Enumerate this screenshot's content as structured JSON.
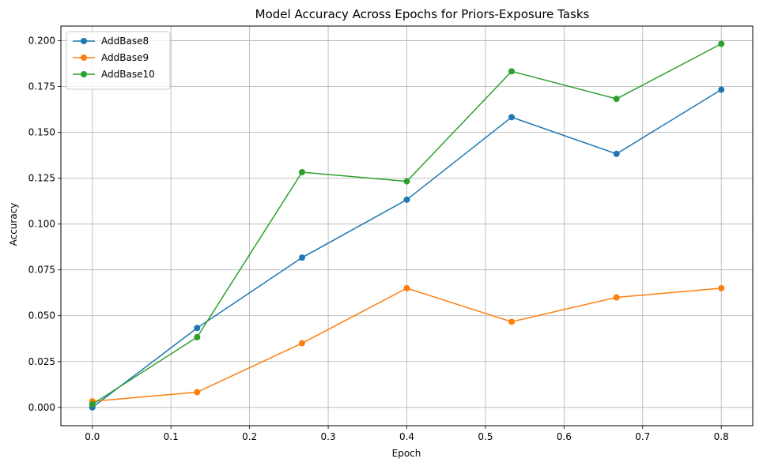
{
  "chart_data": {
    "type": "line",
    "title": "Model Accuracy Across Epochs for Priors-Exposure Tasks",
    "xlabel": "Epoch",
    "ylabel": "Accuracy",
    "x": [
      0.0,
      0.1333,
      0.2667,
      0.4,
      0.5333,
      0.6667,
      0.8
    ],
    "xlim": [
      -0.04,
      0.84
    ],
    "ylim": [
      -0.01,
      0.208
    ],
    "xticks": [
      0.0,
      0.1,
      0.2,
      0.3,
      0.4,
      0.5,
      0.6,
      0.7,
      0.8
    ],
    "xtick_labels": [
      "0.0",
      "0.1",
      "0.2",
      "0.3",
      "0.4",
      "0.5",
      "0.6",
      "0.7",
      "0.8"
    ],
    "yticks": [
      0.0,
      0.025,
      0.05,
      0.075,
      0.1,
      0.125,
      0.15,
      0.175,
      0.2
    ],
    "ytick_labels": [
      "0.000",
      "0.025",
      "0.050",
      "0.075",
      "0.100",
      "0.125",
      "0.150",
      "0.175",
      "0.200"
    ],
    "grid": true,
    "legend_position": "top-left",
    "series": [
      {
        "name": "AddBase8",
        "color": "#1f77b4",
        "values": [
          0.0,
          0.0433,
          0.0817,
          0.1133,
          0.1583,
          0.1383,
          0.1733
        ]
      },
      {
        "name": "AddBase9",
        "color": "#ff7f0e",
        "values": [
          0.0033,
          0.0083,
          0.035,
          0.065,
          0.0467,
          0.06,
          0.065
        ]
      },
      {
        "name": "AddBase10",
        "color": "#2ca02c",
        "values": [
          0.0017,
          0.0383,
          0.1283,
          0.1233,
          0.1833,
          0.1683,
          0.1983
        ]
      }
    ]
  }
}
